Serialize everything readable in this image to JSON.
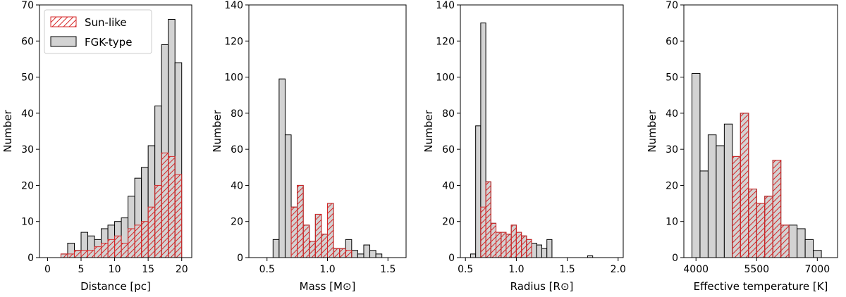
{
  "colors": {
    "fgk_fill": "#d3d3d3",
    "fgk_edge": "#000000",
    "sun_hatch": "#d62728",
    "axes": "#000000"
  },
  "legend": {
    "placement": "top-left of first panel",
    "entries": [
      {
        "label": "Sun-like",
        "style": "red hatched"
      },
      {
        "label": "FGK-type",
        "style": "gray filled"
      }
    ]
  },
  "chart_data": [
    {
      "type": "bar",
      "id": "distance",
      "xlabel": "Distance [pc]",
      "ylabel": "Number",
      "xlim": [
        -1.2,
        21.5
      ],
      "ylim": [
        0,
        70
      ],
      "xticks": [
        0,
        5,
        10,
        15,
        20
      ],
      "xtick_labels": [
        "0",
        "5",
        "10",
        "15",
        "20"
      ],
      "yticks": [
        0,
        10,
        20,
        30,
        40,
        50,
        60,
        70
      ],
      "bin_edges": [
        2.0,
        3.0,
        4.0,
        5.0,
        6.0,
        7.0,
        8.0,
        9.0,
        10.0,
        11.0,
        12.0,
        13.0,
        14.0,
        15.0,
        16.0,
        17.0,
        18.0,
        19.0,
        20.0
      ],
      "series": [
        {
          "name": "FGK-type",
          "values": [
            1,
            4,
            2,
            7,
            6,
            5,
            8,
            9,
            10,
            11,
            17,
            22,
            25,
            31,
            42,
            59,
            66,
            54
          ]
        },
        {
          "name": "Sun-like",
          "values": [
            1,
            1,
            2,
            2,
            2,
            3,
            4,
            5,
            6,
            4,
            8,
            9,
            10,
            14,
            20,
            29,
            28,
            23
          ]
        }
      ]
    },
    {
      "type": "bar",
      "id": "mass",
      "xlabel": "Mass [M⊙]",
      "ylabel": "Number",
      "xlim": [
        0.35,
        1.65
      ],
      "ylim": [
        0,
        140
      ],
      "xticks": [
        0.5,
        1.0,
        1.5
      ],
      "xtick_labels": [
        "0.5",
        "1.0",
        "1.5"
      ],
      "yticks": [
        0,
        20,
        40,
        60,
        80,
        100,
        120,
        140
      ],
      "bin_edges": [
        0.55,
        0.6,
        0.65,
        0.7,
        0.75,
        0.8,
        0.85,
        0.9,
        0.95,
        1.0,
        1.05,
        1.1,
        1.15,
        1.2,
        1.25,
        1.3,
        1.35,
        1.4,
        1.45,
        1.5,
        1.55,
        1.6
      ],
      "series": [
        {
          "name": "FGK-type",
          "values": [
            10,
            99,
            68,
            28,
            40,
            18,
            9,
            24,
            13,
            30,
            5,
            5,
            10,
            4,
            2,
            7,
            4,
            2,
            0,
            0,
            0
          ]
        },
        {
          "name": "Sun-like",
          "values": [
            0,
            0,
            0,
            28,
            40,
            18,
            9,
            24,
            13,
            30,
            5,
            5,
            4,
            0,
            0,
            0,
            0,
            0,
            0,
            0,
            0
          ]
        }
      ]
    },
    {
      "type": "bar",
      "id": "radius",
      "xlabel": "Radius [R⊙]",
      "ylabel": "Number",
      "xlim": [
        0.45,
        2.05
      ],
      "ylim": [
        0,
        140
      ],
      "xticks": [
        0.5,
        1.0,
        1.5,
        2.0
      ],
      "xtick_labels": [
        "0.5",
        "1.0",
        "1.5",
        "2.0"
      ],
      "yticks": [
        0,
        20,
        40,
        60,
        80,
        100,
        120,
        140
      ],
      "bin_edges": [
        0.55,
        0.6,
        0.65,
        0.7,
        0.75,
        0.8,
        0.85,
        0.9,
        0.95,
        1.0,
        1.05,
        1.1,
        1.15,
        1.2,
        1.25,
        1.3,
        1.35,
        1.4,
        1.45,
        1.5,
        1.55,
        1.6,
        1.65,
        1.7,
        1.75,
        1.8,
        1.85
      ],
      "series": [
        {
          "name": "FGK-type",
          "values": [
            2,
            73,
            130,
            42,
            19,
            14,
            14,
            13,
            18,
            14,
            12,
            10,
            8,
            7,
            5,
            10,
            0,
            0,
            0,
            0,
            0,
            0,
            0,
            1,
            0,
            0
          ]
        },
        {
          "name": "Sun-like",
          "values": [
            0,
            0,
            28,
            42,
            19,
            14,
            14,
            13,
            18,
            14,
            12,
            10,
            0,
            0,
            0,
            0,
            0,
            0,
            0,
            0,
            0,
            0,
            0,
            0,
            0,
            0
          ]
        }
      ]
    },
    {
      "type": "bar",
      "id": "teff",
      "xlabel": "Effective temperature [K]",
      "ylabel": "Number",
      "xlim": [
        3700,
        7500
      ],
      "ylim": [
        0,
        70
      ],
      "xticks": [
        4000,
        5500,
        7000
      ],
      "xtick_labels": [
        "4000",
        "5500",
        "7000"
      ],
      "yticks": [
        0,
        10,
        20,
        30,
        40,
        50,
        60,
        70
      ],
      "bin_edges": [
        3900,
        4100,
        4300,
        4500,
        4700,
        4900,
        5100,
        5300,
        5500,
        5700,
        5900,
        6100,
        6300,
        6500,
        6700,
        6900,
        7100,
        7300,
        7500
      ],
      "series": [
        {
          "name": "FGK-type",
          "values": [
            51,
            24,
            34,
            31,
            37,
            28,
            40,
            19,
            15,
            17,
            27,
            9,
            9,
            8,
            5,
            2,
            0,
            0
          ]
        },
        {
          "name": "Sun-like",
          "values": [
            0,
            0,
            0,
            0,
            0,
            28,
            40,
            19,
            15,
            17,
            27,
            9,
            0,
            0,
            0,
            0,
            0,
            0
          ]
        }
      ]
    }
  ]
}
